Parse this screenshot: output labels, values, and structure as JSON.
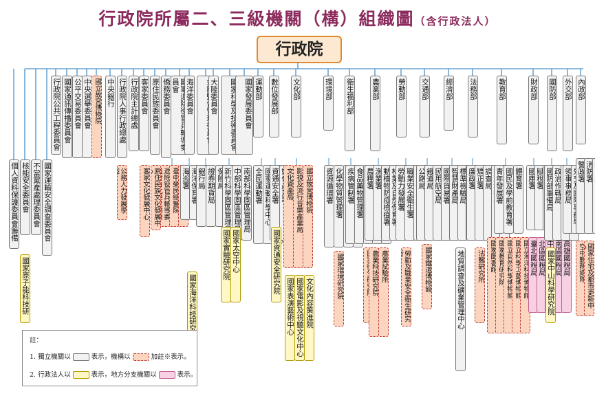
{
  "title": "行政院所屬二、三級機關（構）組織圖",
  "subtitle": "（含行政法人）",
  "root": "行政院",
  "level2": [
    "行政院公共工程委員會",
    "國家通訊傳播委員會",
    "公平交易委員會",
    "中央選舉委員會",
    "國立故宮博物院",
    "中央銀行",
    "行政院人事行政總處",
    "行政院主計總處",
    "客家委員會",
    "原住民族委員會",
    "僑務委員會",
    "國軍退除役官兵輔導委員會",
    "海洋委員會",
    "金融監督管理委員會",
    "大陸委員會",
    "國家科學及技術委員會",
    "國家發展委員會",
    "運動部",
    "數位發展部",
    "文化部",
    "環境部",
    "衛生福利部",
    "農業部",
    "勞動部",
    "交通部",
    "經濟部",
    "法務部",
    "教育部",
    "財政部",
    "國防部",
    "外交部",
    "內政部"
  ],
  "level3": {
    "left_independent": [
      "個人資料保護委員會籌備處",
      "核能安全委員會",
      "不當黨產處理委員會",
      "國家運輸安全調查委員會"
    ],
    "left_corp": "國家原子能科技研究院",
    "personnel": "公務人力發展學院",
    "hakka": "客家文化發展中心",
    "indigenous": "原住民族文化發展中心",
    "veterans": [
      "退除役官兵輔導委員會台北榮民總醫院",
      "臺中榮民總醫院",
      "高雄榮民總醫院"
    ],
    "ocean": [
      "海巡署",
      "海洋保育署",
      "國家海洋研究院"
    ],
    "ocean_corp": "國家海洋科技研究中心（111年7月1日揭牌）",
    "fsc": [
      "銀行局",
      "證券期貨局",
      "保險局",
      "檢查局"
    ],
    "nstc": [
      "新竹科學園區管理局",
      "中部科學園區管理局",
      "南部科學園區管理局"
    ],
    "nstc_corp": [
      "國家實驗研究院",
      "國家太空中心"
    ],
    "sports": [
      "全民運動署",
      "國家運動科學中心",
      "國家運動訓練中心"
    ],
    "digital": [
      "資通安全署",
      "數位產業署"
    ],
    "digital_corp": "國家資通安全研究院",
    "culture": [
      "文化資產局",
      "影視及流行音樂產業局",
      "國立故宮博物院"
    ],
    "culture_corp": [
      "國家表演藝術中心",
      "國家電影及視聽文化中心",
      "文化內容策進院"
    ],
    "environment": [
      "資源循環署",
      "化學物質管理署",
      "氣候變遷署",
      "環境管理署"
    ],
    "environment_corp": "國家環境研究院",
    "health": [
      "疾病管制署",
      "食品藥物管理署",
      "中央健康保險署",
      "國民健康署",
      "社會及家庭署"
    ],
    "health_corp": "國家衛生研究院",
    "agri": [
      "農糧署",
      "漁業署",
      "動植物防疫檢疫署",
      "林業及自然保育署",
      "農田水利署",
      "農業金融署",
      "農村發展及水土保持署"
    ],
    "agri_corp": [
      "農業科技研究院",
      "農業試驗所"
    ],
    "labor": [
      "勞動力發展署",
      "職業安全衛生署",
      "勞工保險局",
      "勞動基金運用局"
    ],
    "labor_corp": "勞動及職業安全衛生研究所",
    "transport": [
      "公路局",
      "鐵道局",
      "民用航空局",
      "觀光署",
      "中央氣象署",
      "高速公路局"
    ],
    "transport_corp": "國家鐵道博物館",
    "economic": [
      "國際貿易署",
      "智慧財產局",
      "標準檢驗局",
      "中小及新創企業署",
      "能源署",
      "產業發展署",
      "水利署"
    ],
    "economic_corp": "地質調查及礦業管理中心",
    "justice": [
      "廉政署",
      "矯正署",
      "調查局",
      "行政執行署",
      "最高檢察署"
    ],
    "justice_corp": "法醫研究所",
    "education": [
      "青年發展署",
      "國民及學前教育署",
      "體育署"
    ],
    "education_corp": [
      "國家圖書館",
      "國家教育研究院",
      "國立自然科學博物館",
      "國立科學工藝博物館",
      "國立海洋科技博物館"
    ],
    "finance": [
      "國庫署",
      "賦稅署",
      "關務署",
      "國有財產署"
    ],
    "finance_local": [
      "臺北國稅局",
      "北區國稅局",
      "中區國稅局",
      "南區國稅局",
      "高雄國稅局"
    ],
    "defense": [
      "國防部軍備局",
      "政治作戰局",
      "主計局",
      "全民防衛動員署"
    ],
    "defense_corp": "國家中山科學研究院",
    "foreign": [
      "領事事務局",
      "外交及國際事務學院"
    ],
    "interior": [
      "警政署",
      "消防署",
      "移民署",
      "國土管理署",
      "國家公園署"
    ],
    "interior_corp": [
      "空中勤務總隊",
      "國家住宅及都市更新中心"
    ]
  },
  "legend": {
    "heading": "註：",
    "line1_a": "1. 獨立機關以",
    "line1_b": "表示，機構以",
    "line1_c": "加註※表示。",
    "line2_a": "2. 行政法人以",
    "line2_b": "表示，地方分支機關以",
    "line2_c": "表示。"
  }
}
